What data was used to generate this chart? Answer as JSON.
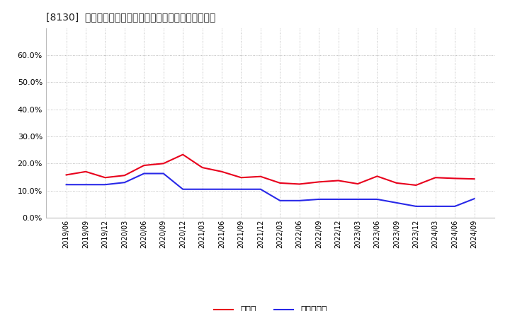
{
  "title": "[8130]  現顔金、有利子負債の総資産に対する比率の推移",
  "x_labels": [
    "2019/06",
    "2019/09",
    "2019/12",
    "2020/03",
    "2020/06",
    "2020/09",
    "2020/12",
    "2021/03",
    "2021/06",
    "2021/09",
    "2021/12",
    "2022/03",
    "2022/06",
    "2022/09",
    "2022/12",
    "2023/03",
    "2023/06",
    "2023/09",
    "2023/12",
    "2024/03",
    "2024/06",
    "2024/09"
  ],
  "cash": [
    0.158,
    0.17,
    0.148,
    0.156,
    0.193,
    0.2,
    0.233,
    0.185,
    0.17,
    0.148,
    0.152,
    0.128,
    0.124,
    0.132,
    0.137,
    0.125,
    0.153,
    0.128,
    0.12,
    0.148,
    0.145,
    0.143
  ],
  "debt": [
    0.122,
    0.122,
    0.122,
    0.13,
    0.163,
    0.163,
    0.105,
    0.105,
    0.105,
    0.105,
    0.105,
    0.063,
    0.063,
    0.068,
    0.068,
    0.068,
    0.068,
    0.055,
    0.042,
    0.042,
    0.042,
    0.07
  ],
  "cash_color": "#e8001c",
  "debt_color": "#2828e8",
  "bg_color": "#ffffff",
  "grid_color": "#999999",
  "ylim": [
    0.0,
    0.7
  ],
  "yticks": [
    0.0,
    0.1,
    0.2,
    0.3,
    0.4,
    0.5,
    0.6
  ],
  "legend_cash": "現顔金",
  "legend_debt": "有利子負債"
}
